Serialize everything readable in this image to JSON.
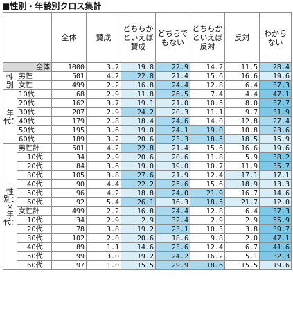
{
  "title": "■性別・年齢別クロス集計",
  "columns": [
    "全体",
    "賛成",
    "どちらかといえば賛成",
    "どちらでもない",
    "どちらかといえば反対",
    "反対",
    "わからない"
  ],
  "total_label": "全体",
  "total_row": [
    "1000",
    "3.2",
    "19.8",
    "22.9",
    "14.2",
    "11.5",
    "28.4"
  ],
  "groups": [
    {
      "label": "性別",
      "rows": [
        {
          "label": "男性",
          "values": [
            "501",
            "4.2",
            "22.8",
            "21.4",
            "15.6",
            "16.6",
            "19.6"
          ]
        },
        {
          "label": "女性",
          "values": [
            "499",
            "2.2",
            "16.8",
            "24.4",
            "12.8",
            "6.4",
            "37.3"
          ]
        }
      ]
    },
    {
      "label": "年代：",
      "rows": [
        {
          "label": "10代",
          "values": [
            "68",
            "2.9",
            "11.8",
            "26.5",
            "7.4",
            "4.4",
            "47.1"
          ]
        },
        {
          "label": "20代",
          "values": [
            "162",
            "3.7",
            "19.1",
            "21.0",
            "10.5",
            "8.0",
            "37.7"
          ]
        },
        {
          "label": "30代",
          "values": [
            "207",
            "2.9",
            "24.2",
            "20.3",
            "11.1",
            "9.7",
            "31.9"
          ]
        },
        {
          "label": "40代",
          "values": [
            "179",
            "2.8",
            "18.4",
            "24.6",
            "14.0",
            "12.8",
            "27.4"
          ]
        },
        {
          "label": "50代",
          "values": [
            "195",
            "3.6",
            "19.0",
            "24.1",
            "19.0",
            "10.8",
            "23.6"
          ]
        },
        {
          "label": "60代",
          "values": [
            "189",
            "3.2",
            "20.6",
            "23.3",
            "18.5",
            "18.5",
            "15.9"
          ]
        }
      ]
    },
    {
      "label": "性別：×年代：",
      "rows": [
        {
          "label": "男性計",
          "values": [
            "501",
            "4.2",
            "22.8",
            "21.4",
            "15.6",
            "16.6",
            "19.6"
          ]
        },
        {
          "label": "10代",
          "values": [
            "34",
            "2.9",
            "20.6",
            "20.6",
            "11.8",
            "5.9",
            "38.2"
          ]
        },
        {
          "label": "20代",
          "values": [
            "84",
            "3.6",
            "19.0",
            "19.0",
            "10.7",
            "11.9",
            "35.7"
          ]
        },
        {
          "label": "30代",
          "values": [
            "105",
            "3.8",
            "27.6",
            "21.9",
            "12.4",
            "17.1",
            "17.1"
          ]
        },
        {
          "label": "40代",
          "values": [
            "90",
            "4.4",
            "22.2",
            "25.6",
            "15.6",
            "18.9",
            "13.3"
          ]
        },
        {
          "label": "50代",
          "values": [
            "96",
            "4.2",
            "18.8",
            "24.0",
            "21.9",
            "16.7",
            "14.6"
          ]
        },
        {
          "label": "60代",
          "values": [
            "92",
            "5.4",
            "26.1",
            "16.3",
            "18.5",
            "21.7",
            "12.0"
          ]
        },
        {
          "label": "女性計",
          "values": [
            "499",
            "2.2",
            "16.8",
            "24.4",
            "12.8",
            "6.4",
            "37.3"
          ]
        },
        {
          "label": "10代",
          "values": [
            "34",
            "2.9",
            "2.9",
            "32.4",
            "2.9",
            "2.9",
            "55.9"
          ]
        },
        {
          "label": "20代",
          "values": [
            "78",
            "3.8",
            "19.2",
            "23.1",
            "10.3",
            "3.8",
            "39.7"
          ]
        },
        {
          "label": "30代",
          "values": [
            "102",
            "2.0",
            "20.6",
            "18.6",
            "9.8",
            "2.0",
            "47.1"
          ]
        },
        {
          "label": "40代",
          "values": [
            "89",
            "1.1",
            "14.6",
            "23.6",
            "12.4",
            "6.7",
            "41.6"
          ]
        },
        {
          "label": "50代",
          "values": [
            "99",
            "3.0",
            "19.2",
            "24.2",
            "16.2",
            "5.1",
            "32.3"
          ]
        },
        {
          "label": "60代",
          "values": [
            "97",
            "1.0",
            "15.5",
            "29.9",
            "18.6",
            "15.5",
            "19.6"
          ]
        }
      ]
    }
  ],
  "heat_colors": {
    "none": "#ffffff",
    "low": "#daeef8",
    "mid": "#a9d9ee",
    "high": "#7ec8e7"
  }
}
